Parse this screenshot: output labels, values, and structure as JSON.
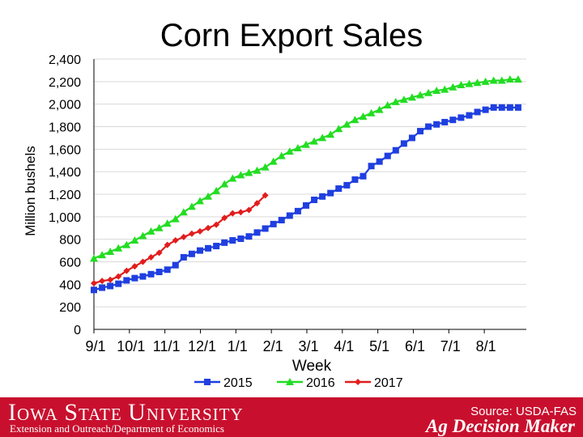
{
  "title": "Corn Export Sales",
  "colors": {
    "s2015": "#1f3fe0",
    "s2016": "#22dd22",
    "s2017": "#e11d1d",
    "grid": "#d9d9d9",
    "axis": "#000000",
    "footer": "#c8102e"
  },
  "chart_data": {
    "type": "line",
    "title": "Corn Export Sales",
    "xlabel": "Week",
    "ylabel": "Million bushels",
    "x_tick_labels": [
      "9/1",
      "10/1",
      "11/1",
      "12/1",
      "1/1",
      "2/1",
      "3/1",
      "4/1",
      "5/1",
      "6/1",
      "7/1",
      "8/1"
    ],
    "y_ticks": [
      0,
      200,
      400,
      600,
      800,
      1000,
      1200,
      1400,
      1600,
      1800,
      2000,
      2200,
      2400
    ],
    "y_tick_labels": [
      "0",
      "200",
      "400",
      "600",
      "800",
      "1,000",
      "1,200",
      "1,400",
      "1,600",
      "1,800",
      "2,000",
      "2,200",
      "2,400"
    ],
    "xlim": [
      0,
      53
    ],
    "ylim": [
      0,
      2400
    ],
    "grid": true,
    "legend_position": "bottom",
    "series": [
      {
        "name": "2015",
        "marker": "square",
        "color": "#1f3fe0",
        "values": [
          350,
          370,
          385,
          405,
          435,
          455,
          470,
          490,
          510,
          530,
          570,
          640,
          670,
          700,
          720,
          740,
          770,
          790,
          805,
          825,
          860,
          895,
          935,
          970,
          1010,
          1050,
          1100,
          1150,
          1180,
          1210,
          1250,
          1280,
          1330,
          1360,
          1450,
          1490,
          1540,
          1590,
          1650,
          1700,
          1760,
          1800,
          1820,
          1840,
          1860,
          1880,
          1900,
          1930,
          1950,
          1970,
          1970,
          1970,
          1970
        ]
      },
      {
        "name": "2016",
        "marker": "triangle",
        "color": "#22dd22",
        "values": [
          630,
          660,
          690,
          720,
          750,
          790,
          830,
          870,
          900,
          940,
          980,
          1040,
          1090,
          1140,
          1180,
          1230,
          1290,
          1340,
          1370,
          1390,
          1410,
          1440,
          1490,
          1540,
          1580,
          1610,
          1640,
          1670,
          1700,
          1730,
          1780,
          1820,
          1860,
          1890,
          1920,
          1950,
          1990,
          2020,
          2040,
          2060,
          2080,
          2100,
          2120,
          2130,
          2150,
          2170,
          2180,
          2190,
          2200,
          2210,
          2210,
          2220,
          2220
        ]
      },
      {
        "name": "2017",
        "marker": "diamond",
        "color": "#e11d1d",
        "values": [
          410,
          430,
          440,
          470,
          520,
          560,
          600,
          640,
          680,
          750,
          790,
          820,
          850,
          870,
          900,
          930,
          990,
          1030,
          1040,
          1060,
          1120,
          1190
        ]
      }
    ]
  },
  "footer": {
    "university": "Iowa State University",
    "department": "Extension and Outreach/Department of Economics",
    "source": "Source: USDA-FAS",
    "program": "Ag Decision Maker"
  }
}
